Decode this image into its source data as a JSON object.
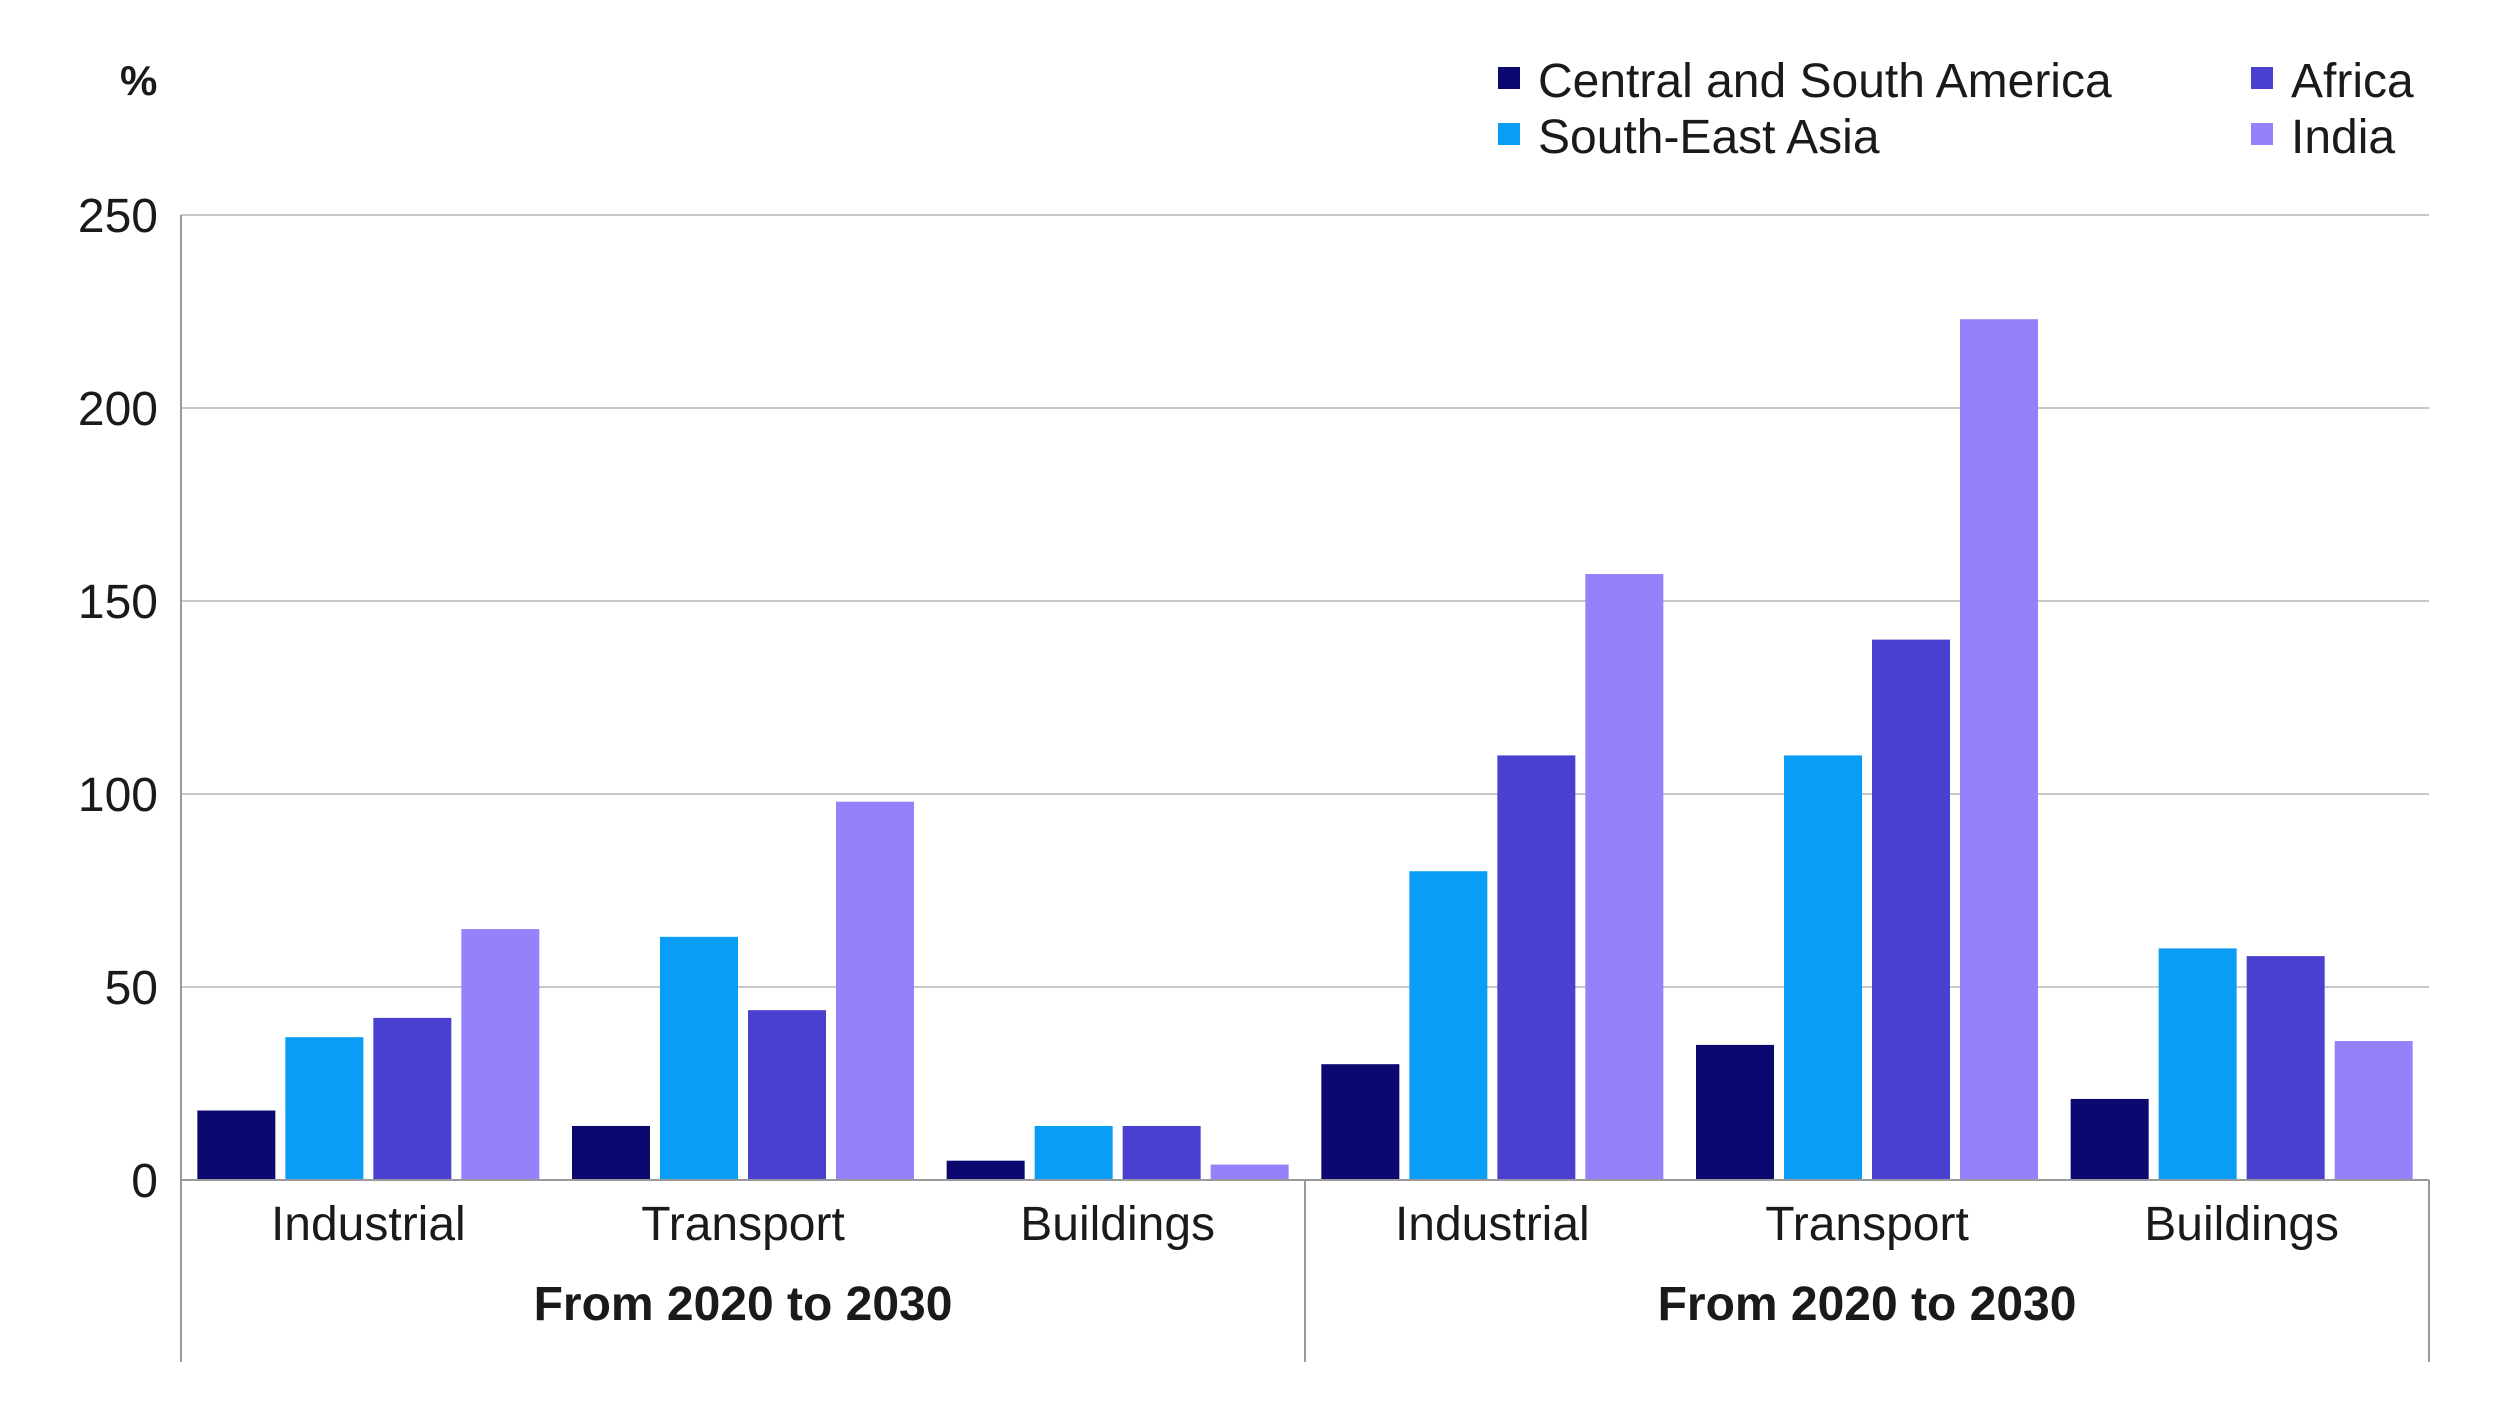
{
  "chart_data": {
    "type": "bar",
    "unit_label": "%",
    "ylim": [
      0,
      250
    ],
    "yticks": [
      "0",
      "50",
      "100",
      "150",
      "200",
      "250"
    ],
    "grid": true,
    "legend_position": "top-right",
    "groups": [
      {
        "label": "From 2020 to 2030",
        "categories": [
          "Industrial",
          "Transport",
          "Buildings"
        ]
      },
      {
        "label": "From 2020 to 2030",
        "categories": [
          "Industrial",
          "Transport",
          "Buildings"
        ]
      }
    ],
    "series": [
      {
        "name": "Central and South America",
        "color": "#0b0870",
        "values": [
          18,
          14,
          5,
          30,
          35,
          21
        ]
      },
      {
        "name": "South-East Asia",
        "color": "#0a9df5",
        "values": [
          37,
          63,
          14,
          80,
          110,
          60
        ]
      },
      {
        "name": "Africa",
        "color": "#4a40cf",
        "values": [
          42,
          44,
          14,
          110,
          140,
          58
        ]
      },
      {
        "name": "India",
        "color": "#9482fd",
        "values": [
          65,
          98,
          4,
          157,
          223,
          36
        ]
      }
    ]
  }
}
